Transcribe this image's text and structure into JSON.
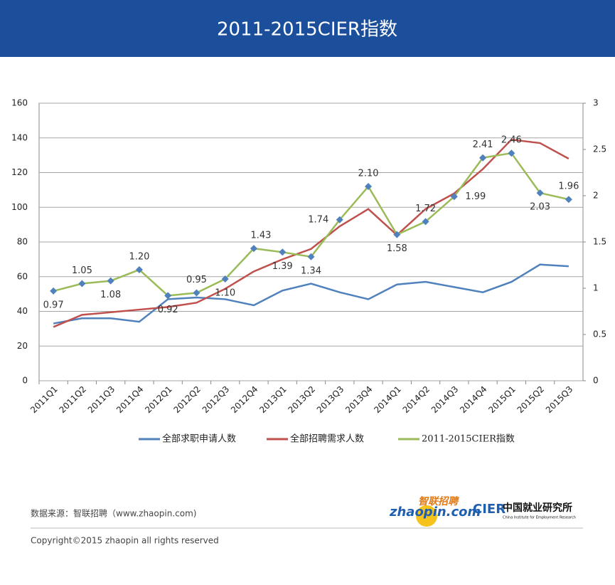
{
  "chart_data": {
    "type": "line",
    "title": "2011-2015CIER指数",
    "categories": [
      "2011Q1",
      "2011Q2",
      "2011Q3",
      "2011Q4",
      "2012Q1",
      "2012Q2",
      "2012Q3",
      "2012Q4",
      "2013Q1",
      "2013Q2",
      "2013Q3",
      "2013Q4",
      "2014Q1",
      "2014Q2",
      "2014Q3",
      "2014Q4",
      "2015Q1",
      "2015Q2",
      "2015Q3"
    ],
    "series": [
      {
        "name": "全部求职申请人数",
        "color": "#4f81bd",
        "values": [
          33,
          36,
          36,
          34,
          47,
          48,
          47,
          43.5,
          52,
          56,
          51,
          47,
          55.5,
          57,
          54,
          51,
          57,
          67,
          66
        ]
      },
      {
        "name": "全部招聘需求人数",
        "color": "#c0504d",
        "values": [
          31,
          38,
          39.5,
          41,
          42.5,
          45,
          53,
          63,
          70,
          76,
          89,
          99,
          84,
          99,
          108,
          122,
          139,
          137,
          128
        ]
      },
      {
        "name": "2011-2015CIER指数",
        "color": "#9bbb59",
        "axis": "y2",
        "marker_color": "#4f81bd",
        "values": [
          0.97,
          1.05,
          1.08,
          1.2,
          0.92,
          0.95,
          1.1,
          1.43,
          1.39,
          1.34,
          1.74,
          2.1,
          1.58,
          1.72,
          1.99,
          2.41,
          2.46,
          2.03,
          1.96
        ],
        "value_labels": [
          "0.97",
          "1.05",
          "1.08",
          "1.20",
          "0.92",
          "0.95",
          "1.10",
          "1.43",
          "1.39",
          "1.34",
          "1.74",
          "2.10",
          "1.58",
          "1.72",
          "1.99",
          "2.41",
          "2.46",
          "2.03",
          "1.96"
        ]
      }
    ],
    "ylim": [
      0,
      160
    ],
    "yticks": [
      0,
      20,
      40,
      60,
      80,
      100,
      120,
      140,
      160
    ],
    "y2lim": [
      0,
      3
    ],
    "y2ticks": [
      0,
      0.5,
      1,
      1.5,
      2,
      2.5,
      3
    ],
    "grid": true
  },
  "footer": {
    "source": "数据来源：智联招聘（www.zhaopin.com)",
    "copyright": "Copyright©2015 zhaopin all rights reserved",
    "logo_zhaopin": "zhaopin.com",
    "logo_zhaopin_cn": "智联招聘",
    "logo_cier": "CIER",
    "logo_cier_cn": "中国就业研究所",
    "logo_cier_en": "China Institute for Employment Research"
  }
}
